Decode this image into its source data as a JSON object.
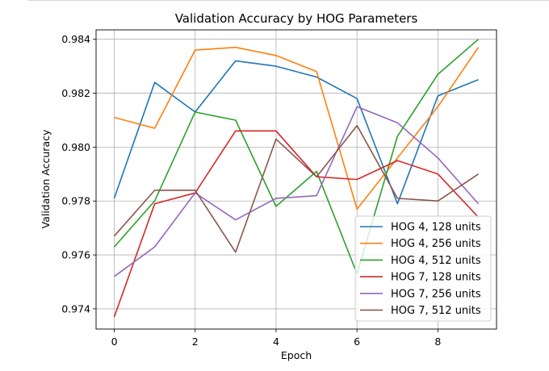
{
  "chart_data": {
    "type": "line",
    "title": "Validation Accuracy by HOG Parameters",
    "xlabel": "Epoch",
    "ylabel": "Validation Accuracy",
    "xlim": [
      -0.45,
      9.45
    ],
    "ylim": [
      0.97325,
      0.98435
    ],
    "xticks": [
      0,
      2,
      4,
      6,
      8
    ],
    "xtick_labels": [
      "0",
      "2",
      "4",
      "6",
      "8"
    ],
    "yticks": [
      0.974,
      0.976,
      0.978,
      0.98,
      0.982,
      0.984
    ],
    "ytick_labels": [
      "0.974",
      "0.976",
      "0.978",
      "0.980",
      "0.982",
      "0.984"
    ],
    "grid": true,
    "legend_position": "lower-right",
    "x": [
      0,
      1,
      2,
      3,
      4,
      5,
      6,
      7,
      8,
      9
    ],
    "series": [
      {
        "name": "HOG 4, 128 units",
        "color": "#1f77b4",
        "values": [
          0.9781,
          0.9824,
          0.9813,
          0.9832,
          0.983,
          0.9826,
          0.9818,
          0.9779,
          0.9819,
          0.9825
        ]
      },
      {
        "name": "HOG 4, 256 units",
        "color": "#ff7f0e",
        "values": [
          0.9811,
          0.9807,
          0.9836,
          0.9837,
          0.9834,
          0.9828,
          0.9777,
          0.9796,
          0.9815,
          0.9837
        ]
      },
      {
        "name": "HOG 4, 512 units",
        "color": "#2ca02c",
        "values": [
          0.9763,
          0.978,
          0.9813,
          0.981,
          0.9778,
          0.9791,
          0.9753,
          0.9804,
          0.9827,
          0.984
        ]
      },
      {
        "name": "HOG 7, 128 units",
        "color": "#d62728",
        "values": [
          0.9737,
          0.9779,
          0.9783,
          0.9806,
          0.9806,
          0.9789,
          0.9788,
          0.9795,
          0.979,
          0.9774
        ]
      },
      {
        "name": "HOG 7, 256 units",
        "color": "#9467bd",
        "values": [
          0.9752,
          0.9763,
          0.9783,
          0.9773,
          0.9781,
          0.9782,
          0.9815,
          0.9809,
          0.9796,
          0.9779
        ]
      },
      {
        "name": "HOG 7, 512 units",
        "color": "#8c564b",
        "values": [
          0.9767,
          0.9784,
          0.9784,
          0.9761,
          0.9803,
          0.9789,
          0.9808,
          0.9781,
          0.978,
          0.979
        ]
      }
    ]
  }
}
